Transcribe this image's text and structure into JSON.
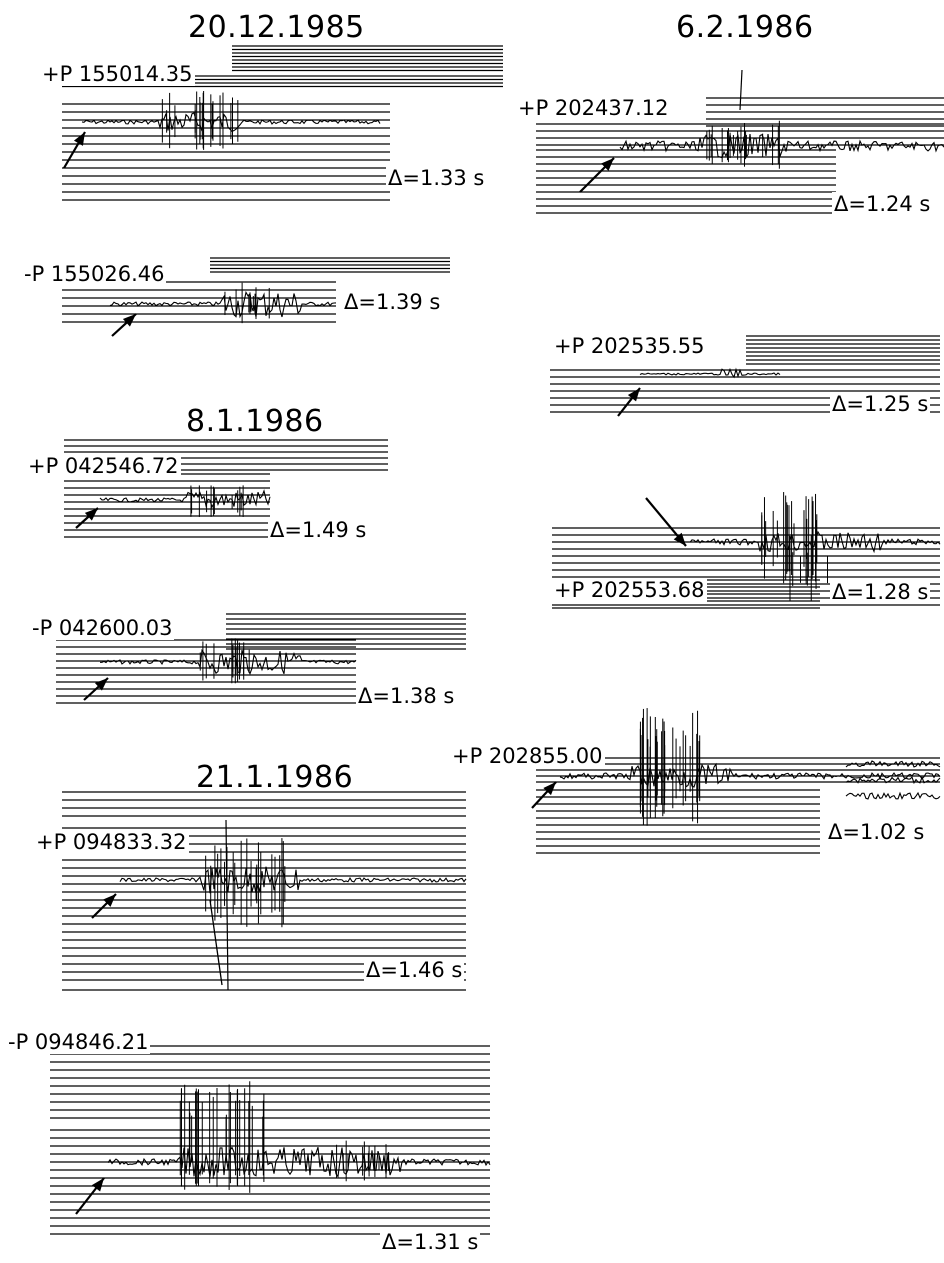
{
  "dates": [
    "20.12.1985",
    "6.2.1986",
    "8.1.1986",
    "21.1.1986"
  ],
  "records": [
    {
      "phase": "+P",
      "time": "155014.35",
      "delta": "Δ=1.33 s"
    },
    {
      "phase": "-P",
      "time": "155026.46",
      "delta": "Δ=1.39 s"
    },
    {
      "phase": "+P",
      "time": "042546.72",
      "delta": "Δ=1.49 s"
    },
    {
      "phase": "-P",
      "time": "042600.03",
      "delta": "Δ=1.38 s"
    },
    {
      "phase": "+P",
      "time": "094833.32",
      "delta": "Δ=1.46 s"
    },
    {
      "phase": "-P",
      "time": "094846.21",
      "delta": "Δ=1.31 s"
    },
    {
      "phase": "+P",
      "time": "202437.12",
      "delta": "Δ=1.24 s"
    },
    {
      "phase": "+P",
      "time": "202535.55",
      "delta": "Δ=1.25 s"
    },
    {
      "phase": "+P",
      "time": "202553.68",
      "delta": "Δ=1.28 s"
    },
    {
      "phase": "+P",
      "time": "202855.00",
      "delta": "Δ=1.02 s"
    }
  ],
  "labels": {
    "r0": "+P 155014.35",
    "r1": "-P 155026.46",
    "r2": "+P 042546.72",
    "r3": "-P 042600.03",
    "r4": "+P 094833.32",
    "r5": "-P 094846.21",
    "r6": "+P 202437.12",
    "r7": "+P 202535.55",
    "r8": "+P 202553.68",
    "r9": "+P 202855.00"
  },
  "colors": {
    "ink": "#000000",
    "paper": "#ffffff"
  }
}
